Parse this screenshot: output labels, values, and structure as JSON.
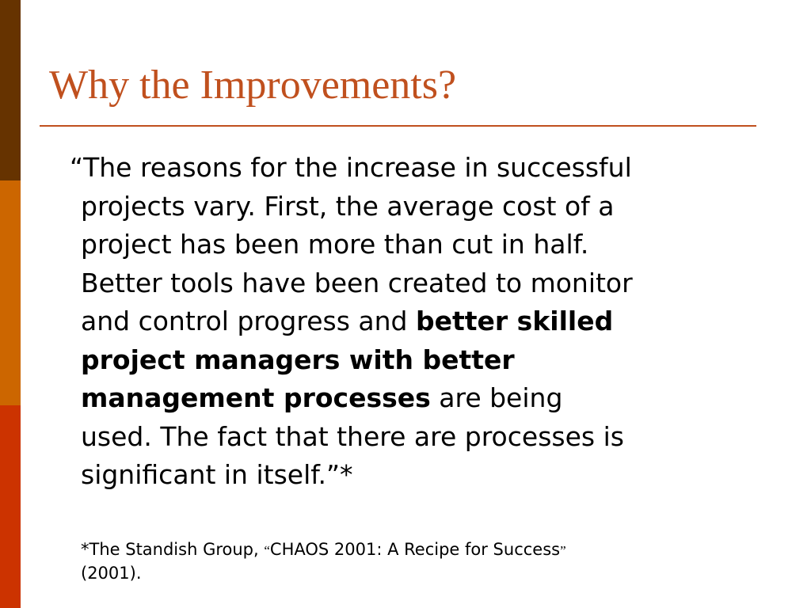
{
  "slide": {
    "title": "Why the Improvements?",
    "quote": {
      "line1": "“The reasons for the increase in successful",
      "line2": "projects vary. First, the average cost of a",
      "line3": "project has been more than cut in half.",
      "line4": "Better tools have been created to monitor",
      "line5_plain": "and control progress and ",
      "line5_bold": "better skilled",
      "line6_bold": "project managers with better",
      "line7_bold": "management processes",
      "line7_plain": " are being",
      "line8": "used. The fact that there are processes is",
      "line9": "significant in itself.”*"
    },
    "footnote": {
      "prefix": "*The Standish Group, ",
      "open_quote": "“",
      "source_title": "CHAOS 2001: A Recipe for Success",
      "close_quote": "”",
      "year": "(2001)."
    }
  },
  "colors": {
    "accent": "#c0501e",
    "sidebar_dark": "#663300",
    "sidebar_mid": "#cc6600",
    "sidebar_red": "#cc3300"
  }
}
